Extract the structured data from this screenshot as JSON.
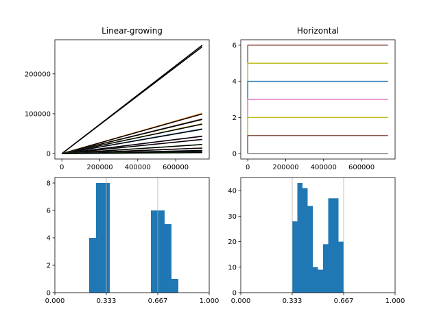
{
  "chart_data": [
    {
      "type": "line",
      "title": "Linear-growing",
      "xlabel": "",
      "ylabel": "",
      "xlim": [
        -37000,
        777000
      ],
      "ylim": [
        -13600,
        285600
      ],
      "x_ticks": [
        0,
        200000,
        400000,
        600000
      ],
      "x_tick_labels": [
        "0",
        "200000",
        "400000",
        "600000"
      ],
      "y_ticks": [
        0,
        100000,
        200000
      ],
      "y_tick_labels": [
        "0",
        "100000",
        "200000"
      ],
      "grid": false,
      "x_range": [
        0,
        740000
      ],
      "series": [
        {
          "start": 0,
          "end": 272000,
          "color": "#000000"
        },
        {
          "start": 0,
          "end": 101000,
          "color": "#ff7f0e"
        },
        {
          "start": 0,
          "end": 87000,
          "color": "#8c564b"
        },
        {
          "start": 0,
          "end": 75000,
          "color": "#bcbd22"
        },
        {
          "start": 0,
          "end": 62000,
          "color": "#1f77b4"
        },
        {
          "start": 0,
          "end": 44000,
          "color": "#9467bd"
        },
        {
          "start": 0,
          "end": 36000,
          "color": "#e377c2"
        },
        {
          "start": 0,
          "end": 23000,
          "color": "#2ca02c"
        },
        {
          "start": 0,
          "end": 14000,
          "color": "#d62728"
        },
        {
          "start": 0,
          "end": 8000,
          "color": "#17becf"
        },
        {
          "start": 0,
          "end": 5000,
          "color": "#7f7f7f"
        },
        {
          "start": 0,
          "end": 2500,
          "color": "#2ca02c"
        }
      ]
    },
    {
      "type": "line",
      "title": "Horizontal",
      "xlabel": "",
      "ylabel": "",
      "xlim": [
        -37000,
        777000
      ],
      "ylim": [
        -0.3,
        6.3
      ],
      "x_ticks": [
        0,
        200000,
        400000,
        600000
      ],
      "x_tick_labels": [
        "0",
        "200000",
        "400000",
        "600000"
      ],
      "y_ticks": [
        0,
        2,
        4,
        6
      ],
      "y_tick_labels": [
        "0",
        "2",
        "4",
        "6"
      ],
      "grid": false,
      "x_range": [
        0,
        740000
      ],
      "series": [
        {
          "level": 6,
          "color": "#8c564b"
        },
        {
          "level": 5,
          "color": "#bcbd22"
        },
        {
          "level": 4,
          "color": "#1f77b4"
        },
        {
          "level": 3,
          "color": "#e377c2"
        },
        {
          "level": 2,
          "color": "#bcbd22"
        },
        {
          "level": 1,
          "color": "#8c564b"
        },
        {
          "level": 0,
          "color": "#7f7f7f"
        }
      ]
    },
    {
      "type": "bar",
      "title": "",
      "xlabel": "",
      "ylabel": "",
      "xlim": [
        0,
        1
      ],
      "ylim": [
        0,
        8.4
      ],
      "x_ticks": [
        0,
        0.3333,
        0.6667,
        1
      ],
      "x_tick_labels": [
        "0.000",
        "0.333",
        "0.667",
        "1.000"
      ],
      "y_ticks": [
        0,
        2,
        4,
        6,
        8
      ],
      "y_tick_labels": [
        "0",
        "2",
        "4",
        "6",
        "8"
      ],
      "vlines": [
        0.3333,
        0.6667
      ],
      "bins": [
        {
          "x0": 0.2222,
          "x1": 0.2667,
          "value": 4
        },
        {
          "x0": 0.2667,
          "x1": 0.3111,
          "value": 8
        },
        {
          "x0": 0.3111,
          "x1": 0.3556,
          "value": 8
        },
        {
          "x0": 0.6222,
          "x1": 0.6667,
          "value": 6
        },
        {
          "x0": 0.6667,
          "x1": 0.7111,
          "value": 6
        },
        {
          "x0": 0.7111,
          "x1": 0.7556,
          "value": 5
        },
        {
          "x0": 0.7556,
          "x1": 0.8,
          "value": 1
        }
      ]
    },
    {
      "type": "bar",
      "title": "",
      "xlabel": "",
      "ylabel": "",
      "xlim": [
        0,
        1
      ],
      "ylim": [
        0,
        45.15
      ],
      "x_ticks": [
        0,
        0.3333,
        0.6667,
        1
      ],
      "x_tick_labels": [
        "0.000",
        "0.333",
        "0.667",
        "1.000"
      ],
      "y_ticks": [
        0,
        10,
        20,
        30,
        40
      ],
      "y_tick_labels": [
        "0",
        "10",
        "20",
        "30",
        "40"
      ],
      "vlines": [
        0.3333,
        0.6667
      ],
      "bins": [
        {
          "x0": 0.3333,
          "x1": 0.3667,
          "value": 28
        },
        {
          "x0": 0.3667,
          "x1": 0.4,
          "value": 43
        },
        {
          "x0": 0.4,
          "x1": 0.4333,
          "value": 41
        },
        {
          "x0": 0.4333,
          "x1": 0.4667,
          "value": 34
        },
        {
          "x0": 0.4667,
          "x1": 0.5,
          "value": 10
        },
        {
          "x0": 0.5,
          "x1": 0.5333,
          "value": 9
        },
        {
          "x0": 0.5333,
          "x1": 0.5667,
          "value": 19
        },
        {
          "x0": 0.5667,
          "x1": 0.6,
          "value": 37
        },
        {
          "x0": 0.6,
          "x1": 0.6333,
          "value": 37
        },
        {
          "x0": 0.6333,
          "x1": 0.6667,
          "value": 20
        }
      ]
    }
  ]
}
